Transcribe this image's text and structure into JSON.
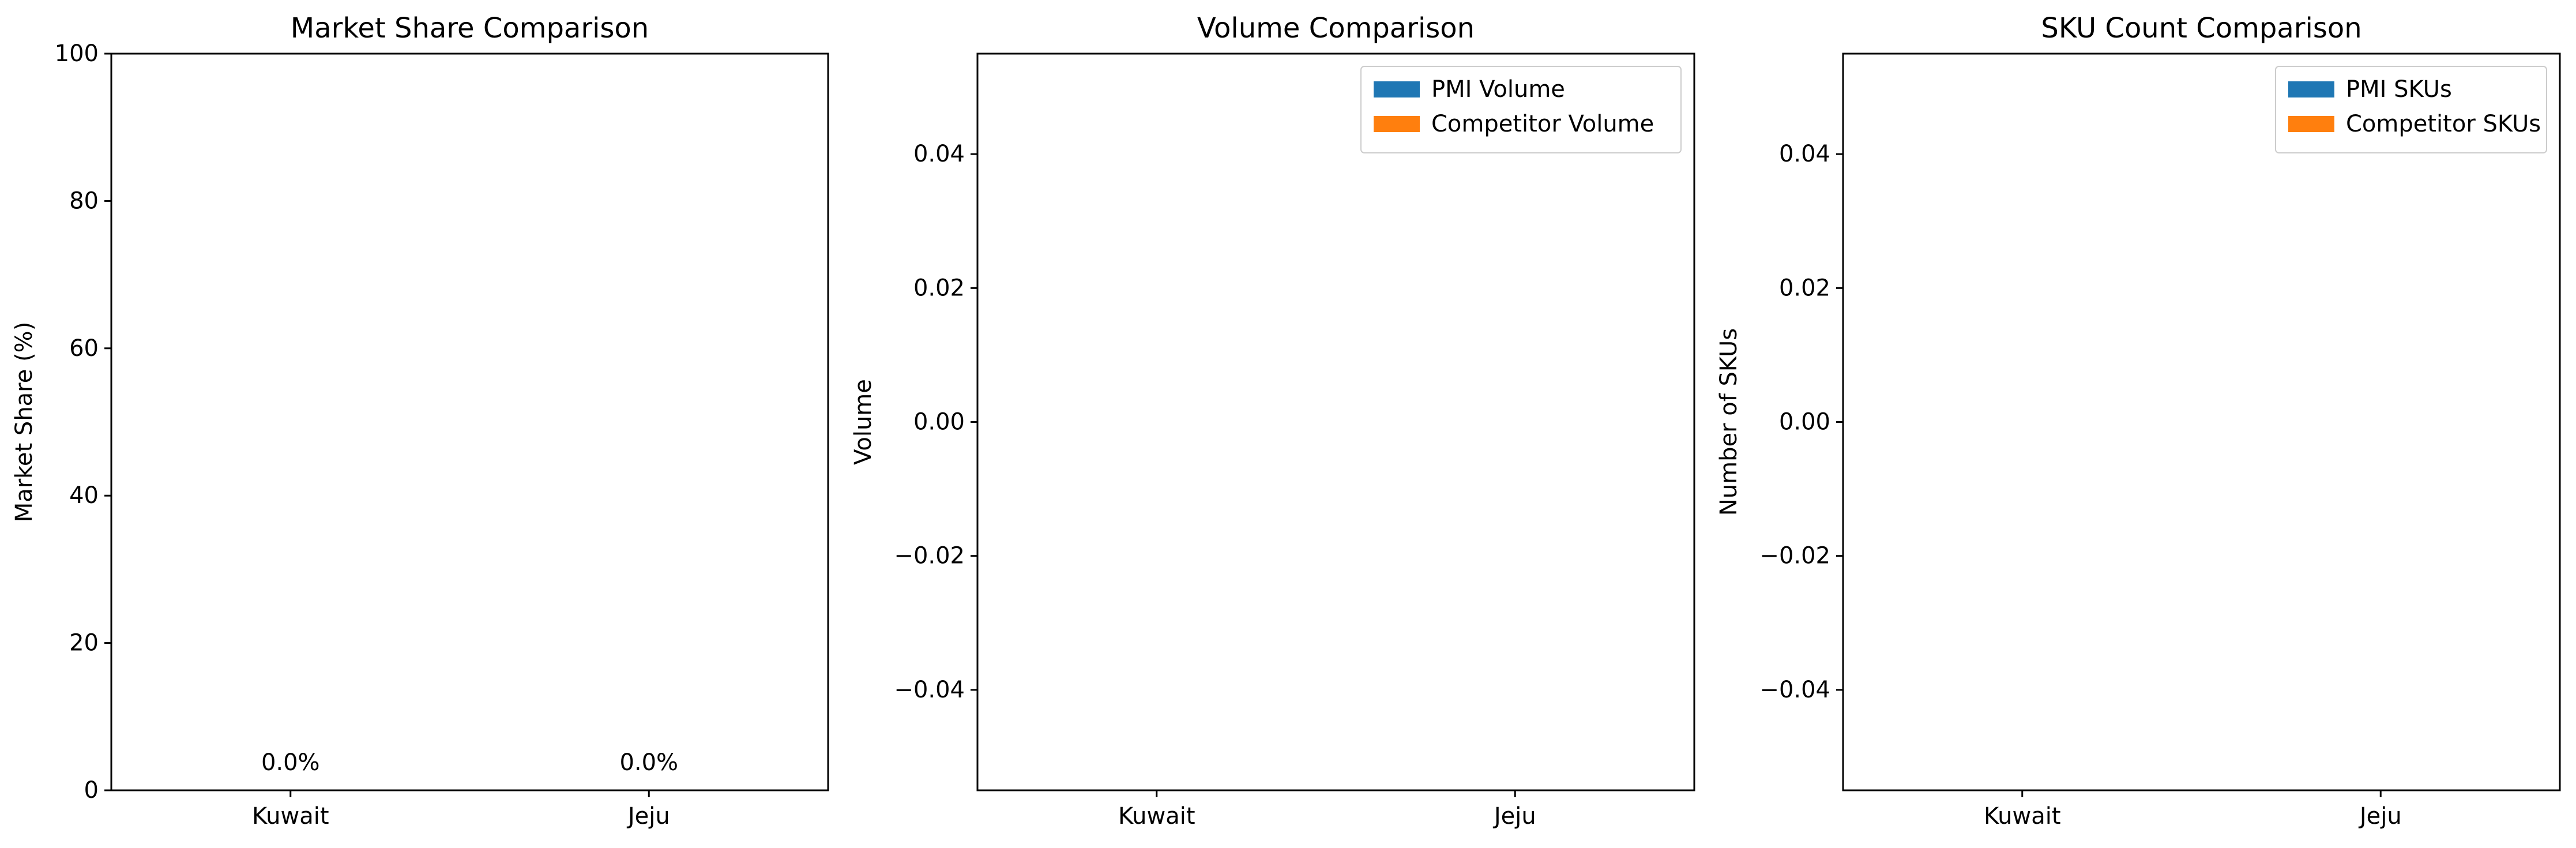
{
  "colors": {
    "series1": "#1f77b4",
    "series2": "#ff7f0e",
    "axis": "#000000",
    "background": "#ffffff"
  },
  "chart_data": [
    {
      "type": "bar",
      "title": "Market Share Comparison",
      "xlabel": "",
      "ylabel": "Market Share (%)",
      "categories": [
        "Kuwait",
        "Jeju"
      ],
      "series": [
        {
          "values": [
            0.0,
            0.0
          ]
        }
      ],
      "data_labels": [
        "0.0%",
        "0.0%"
      ],
      "ylim": [
        0,
        100
      ],
      "yticks": [
        0,
        20,
        40,
        60,
        80,
        100
      ],
      "ytick_labels": [
        "0",
        "20",
        "40",
        "60",
        "80",
        "100"
      ],
      "grid": false,
      "legend": null
    },
    {
      "type": "bar",
      "title": "Volume Comparison",
      "xlabel": "",
      "ylabel": "Volume",
      "categories": [
        "Kuwait",
        "Jeju"
      ],
      "series": [
        {
          "name": "PMI Volume",
          "values": [
            0,
            0
          ]
        },
        {
          "name": "Competitor Volume",
          "values": [
            0,
            0
          ]
        }
      ],
      "ylim": [
        -0.055,
        0.055
      ],
      "yticks": [
        -0.04,
        -0.02,
        0.0,
        0.02,
        0.04
      ],
      "ytick_labels": [
        "−0.04",
        "−0.02",
        "0.00",
        "0.02",
        "0.04"
      ],
      "grid": false,
      "legend": "top-right"
    },
    {
      "type": "bar",
      "title": "SKU Count Comparison",
      "xlabel": "",
      "ylabel": "Number of SKUs",
      "categories": [
        "Kuwait",
        "Jeju"
      ],
      "series": [
        {
          "name": "PMI SKUs",
          "values": [
            0,
            0
          ]
        },
        {
          "name": "Competitor SKUs",
          "values": [
            0,
            0
          ]
        }
      ],
      "ylim": [
        -0.055,
        0.055
      ],
      "yticks": [
        -0.04,
        -0.02,
        0.0,
        0.02,
        0.04
      ],
      "ytick_labels": [
        "−0.04",
        "−0.02",
        "0.00",
        "0.02",
        "0.04"
      ],
      "grid": false,
      "legend": "top-right"
    }
  ]
}
